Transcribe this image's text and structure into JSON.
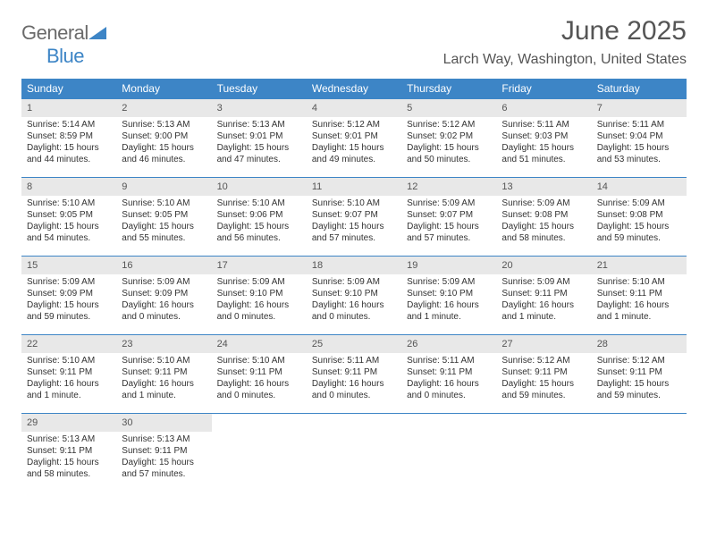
{
  "logo": {
    "general": "General",
    "blue": "Blue"
  },
  "header": {
    "title": "June 2025",
    "location": "Larch Way, Washington, United States"
  },
  "colors": {
    "header_bg": "#3d85c6",
    "header_fg": "#ffffff",
    "daynum_bg": "#e8e8e8",
    "row_border": "#3d85c6"
  },
  "weekdays": [
    "Sunday",
    "Monday",
    "Tuesday",
    "Wednesday",
    "Thursday",
    "Friday",
    "Saturday"
  ],
  "days": [
    {
      "n": "1",
      "sr": "Sunrise: 5:14 AM",
      "ss": "Sunset: 8:59 PM",
      "d1": "Daylight: 15 hours",
      "d2": "and 44 minutes."
    },
    {
      "n": "2",
      "sr": "Sunrise: 5:13 AM",
      "ss": "Sunset: 9:00 PM",
      "d1": "Daylight: 15 hours",
      "d2": "and 46 minutes."
    },
    {
      "n": "3",
      "sr": "Sunrise: 5:13 AM",
      "ss": "Sunset: 9:01 PM",
      "d1": "Daylight: 15 hours",
      "d2": "and 47 minutes."
    },
    {
      "n": "4",
      "sr": "Sunrise: 5:12 AM",
      "ss": "Sunset: 9:01 PM",
      "d1": "Daylight: 15 hours",
      "d2": "and 49 minutes."
    },
    {
      "n": "5",
      "sr": "Sunrise: 5:12 AM",
      "ss": "Sunset: 9:02 PM",
      "d1": "Daylight: 15 hours",
      "d2": "and 50 minutes."
    },
    {
      "n": "6",
      "sr": "Sunrise: 5:11 AM",
      "ss": "Sunset: 9:03 PM",
      "d1": "Daylight: 15 hours",
      "d2": "and 51 minutes."
    },
    {
      "n": "7",
      "sr": "Sunrise: 5:11 AM",
      "ss": "Sunset: 9:04 PM",
      "d1": "Daylight: 15 hours",
      "d2": "and 53 minutes."
    },
    {
      "n": "8",
      "sr": "Sunrise: 5:10 AM",
      "ss": "Sunset: 9:05 PM",
      "d1": "Daylight: 15 hours",
      "d2": "and 54 minutes."
    },
    {
      "n": "9",
      "sr": "Sunrise: 5:10 AM",
      "ss": "Sunset: 9:05 PM",
      "d1": "Daylight: 15 hours",
      "d2": "and 55 minutes."
    },
    {
      "n": "10",
      "sr": "Sunrise: 5:10 AM",
      "ss": "Sunset: 9:06 PM",
      "d1": "Daylight: 15 hours",
      "d2": "and 56 minutes."
    },
    {
      "n": "11",
      "sr": "Sunrise: 5:10 AM",
      "ss": "Sunset: 9:07 PM",
      "d1": "Daylight: 15 hours",
      "d2": "and 57 minutes."
    },
    {
      "n": "12",
      "sr": "Sunrise: 5:09 AM",
      "ss": "Sunset: 9:07 PM",
      "d1": "Daylight: 15 hours",
      "d2": "and 57 minutes."
    },
    {
      "n": "13",
      "sr": "Sunrise: 5:09 AM",
      "ss": "Sunset: 9:08 PM",
      "d1": "Daylight: 15 hours",
      "d2": "and 58 minutes."
    },
    {
      "n": "14",
      "sr": "Sunrise: 5:09 AM",
      "ss": "Sunset: 9:08 PM",
      "d1": "Daylight: 15 hours",
      "d2": "and 59 minutes."
    },
    {
      "n": "15",
      "sr": "Sunrise: 5:09 AM",
      "ss": "Sunset: 9:09 PM",
      "d1": "Daylight: 15 hours",
      "d2": "and 59 minutes."
    },
    {
      "n": "16",
      "sr": "Sunrise: 5:09 AM",
      "ss": "Sunset: 9:09 PM",
      "d1": "Daylight: 16 hours",
      "d2": "and 0 minutes."
    },
    {
      "n": "17",
      "sr": "Sunrise: 5:09 AM",
      "ss": "Sunset: 9:10 PM",
      "d1": "Daylight: 16 hours",
      "d2": "and 0 minutes."
    },
    {
      "n": "18",
      "sr": "Sunrise: 5:09 AM",
      "ss": "Sunset: 9:10 PM",
      "d1": "Daylight: 16 hours",
      "d2": "and 0 minutes."
    },
    {
      "n": "19",
      "sr": "Sunrise: 5:09 AM",
      "ss": "Sunset: 9:10 PM",
      "d1": "Daylight: 16 hours",
      "d2": "and 1 minute."
    },
    {
      "n": "20",
      "sr": "Sunrise: 5:09 AM",
      "ss": "Sunset: 9:11 PM",
      "d1": "Daylight: 16 hours",
      "d2": "and 1 minute."
    },
    {
      "n": "21",
      "sr": "Sunrise: 5:10 AM",
      "ss": "Sunset: 9:11 PM",
      "d1": "Daylight: 16 hours",
      "d2": "and 1 minute."
    },
    {
      "n": "22",
      "sr": "Sunrise: 5:10 AM",
      "ss": "Sunset: 9:11 PM",
      "d1": "Daylight: 16 hours",
      "d2": "and 1 minute."
    },
    {
      "n": "23",
      "sr": "Sunrise: 5:10 AM",
      "ss": "Sunset: 9:11 PM",
      "d1": "Daylight: 16 hours",
      "d2": "and 1 minute."
    },
    {
      "n": "24",
      "sr": "Sunrise: 5:10 AM",
      "ss": "Sunset: 9:11 PM",
      "d1": "Daylight: 16 hours",
      "d2": "and 0 minutes."
    },
    {
      "n": "25",
      "sr": "Sunrise: 5:11 AM",
      "ss": "Sunset: 9:11 PM",
      "d1": "Daylight: 16 hours",
      "d2": "and 0 minutes."
    },
    {
      "n": "26",
      "sr": "Sunrise: 5:11 AM",
      "ss": "Sunset: 9:11 PM",
      "d1": "Daylight: 16 hours",
      "d2": "and 0 minutes."
    },
    {
      "n": "27",
      "sr": "Sunrise: 5:12 AM",
      "ss": "Sunset: 9:11 PM",
      "d1": "Daylight: 15 hours",
      "d2": "and 59 minutes."
    },
    {
      "n": "28",
      "sr": "Sunrise: 5:12 AM",
      "ss": "Sunset: 9:11 PM",
      "d1": "Daylight: 15 hours",
      "d2": "and 59 minutes."
    },
    {
      "n": "29",
      "sr": "Sunrise: 5:13 AM",
      "ss": "Sunset: 9:11 PM",
      "d1": "Daylight: 15 hours",
      "d2": "and 58 minutes."
    },
    {
      "n": "30",
      "sr": "Sunrise: 5:13 AM",
      "ss": "Sunset: 9:11 PM",
      "d1": "Daylight: 15 hours",
      "d2": "and 57 minutes."
    }
  ]
}
